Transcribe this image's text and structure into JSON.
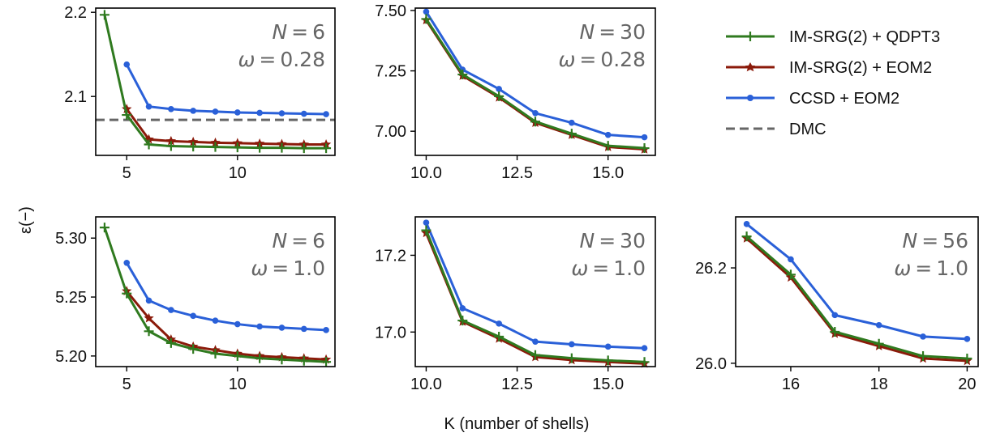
{
  "chart_data": {
    "type": "line",
    "ylabel": "ε(−)",
    "xlabel": "K (number of shells)",
    "legend": {
      "placement": "top-right",
      "entries": [
        {
          "label": "IM-SRG(2) + QDPT3",
          "color": "#2f7a1f",
          "marker": "plus"
        },
        {
          "label": "IM-SRG(2) + EOM2",
          "color": "#8b1a0a",
          "marker": "star"
        },
        {
          "label": "CCSD + EOM2",
          "color": "#2a60d8",
          "marker": "circle"
        },
        {
          "label": "DMC",
          "color": "#666666",
          "marker": "dashed"
        }
      ]
    },
    "panels": [
      {
        "N": "6",
        "omega": "0.28",
        "xlim": [
          3.6,
          14.4
        ],
        "ylim": [
          2.03,
          2.205
        ],
        "xticks": [
          5,
          10
        ],
        "xtick_labels": [
          "5",
          "10"
        ],
        "yticks": [
          2.1,
          2.2
        ],
        "ytick_labels": [
          "2.1",
          "2.2"
        ],
        "dmc": 2.0722,
        "series": [
          {
            "key": "ccsd",
            "x": [
              5,
              6,
              7,
              8,
              9,
              10,
              11,
              12,
              13,
              14
            ],
            "y": [
              2.138,
              2.088,
              2.085,
              2.083,
              2.082,
              2.081,
              2.0805,
              2.08,
              2.0795,
              2.079
            ]
          },
          {
            "key": "eom2",
            "x": [
              5,
              6,
              7,
              8,
              9,
              10,
              11,
              12,
              13,
              14
            ],
            "y": [
              2.085,
              2.049,
              2.047,
              2.046,
              2.045,
              2.0445,
              2.044,
              2.0435,
              2.043,
              2.043
            ]
          },
          {
            "key": "qdpt3",
            "x": [
              4,
              5,
              6,
              7,
              8,
              9,
              10,
              11,
              12,
              13,
              14
            ],
            "y": [
              2.197,
              2.078,
              2.043,
              2.041,
              2.0405,
              2.04,
              2.0395,
              2.039,
              2.039,
              2.0385,
              2.0385
            ]
          }
        ]
      },
      {
        "N": "30",
        "omega": "0.28",
        "xlim": [
          9.7,
          16.3
        ],
        "ylim": [
          6.9,
          7.51
        ],
        "xticks": [
          10,
          12.5,
          15
        ],
        "xtick_labels": [
          "10.0",
          "12.5",
          "15.0"
        ],
        "yticks": [
          7.0,
          7.25,
          7.5
        ],
        "ytick_labels": [
          "7.00",
          "7.25",
          "7.50"
        ],
        "series": [
          {
            "key": "ccsd",
            "x": [
              10,
              11,
              12,
              13,
              14,
              15,
              16
            ],
            "y": [
              7.495,
              7.255,
              7.175,
              7.075,
              7.035,
              6.985,
              6.975
            ]
          },
          {
            "key": "eom2",
            "x": [
              10,
              11,
              12,
              13,
              14,
              15,
              16
            ],
            "y": [
              7.46,
              7.23,
              7.14,
              7.035,
              6.985,
              6.935,
              6.925
            ]
          },
          {
            "key": "qdpt3",
            "x": [
              10,
              11,
              12,
              13,
              14,
              15,
              16
            ],
            "y": [
              7.465,
              7.235,
              7.145,
              7.04,
              6.99,
              6.94,
              6.93
            ]
          }
        ]
      },
      {
        "N": "6",
        "omega": "1.0",
        "xlim": [
          3.6,
          14.4
        ],
        "ylim": [
          5.191,
          5.318
        ],
        "xticks": [
          5,
          10
        ],
        "xtick_labels": [
          "5",
          "10"
        ],
        "yticks": [
          5.2,
          5.25,
          5.3
        ],
        "ytick_labels": [
          "5.20",
          "5.25",
          "5.30"
        ],
        "series": [
          {
            "key": "ccsd",
            "x": [
              5,
              6,
              7,
              8,
              9,
              10,
              11,
              12,
              13,
              14
            ],
            "y": [
              5.279,
              5.247,
              5.239,
              5.234,
              5.23,
              5.227,
              5.225,
              5.224,
              5.223,
              5.222
            ]
          },
          {
            "key": "eom2",
            "x": [
              5,
              6,
              7,
              8,
              9,
              10,
              11,
              12,
              13,
              14
            ],
            "y": [
              5.255,
              5.232,
              5.214,
              5.208,
              5.205,
              5.202,
              5.2,
              5.199,
              5.198,
              5.197
            ]
          },
          {
            "key": "qdpt3",
            "x": [
              4,
              5,
              6,
              7,
              8,
              9,
              10,
              11,
              12,
              13,
              14
            ],
            "y": [
              5.309,
              5.253,
              5.221,
              5.211,
              5.206,
              5.202,
              5.2,
              5.198,
              5.197,
              5.196,
              5.195
            ]
          }
        ]
      },
      {
        "N": "30",
        "omega": "1.0",
        "xlim": [
          9.7,
          16.3
        ],
        "ylim": [
          16.91,
          17.3
        ],
        "xticks": [
          10,
          12.5,
          15
        ],
        "xtick_labels": [
          "10.0",
          "12.5",
          "15.0"
        ],
        "yticks": [
          17.0,
          17.2
        ],
        "ytick_labels": [
          "17.0",
          "17.2"
        ],
        "series": [
          {
            "key": "ccsd",
            "x": [
              10,
              11,
              12,
              13,
              14,
              15,
              16
            ],
            "y": [
              17.285,
              17.062,
              17.022,
              16.975,
              16.968,
              16.962,
              16.958
            ]
          },
          {
            "key": "eom2",
            "x": [
              10,
              11,
              12,
              13,
              14,
              15,
              16
            ],
            "y": [
              17.258,
              17.027,
              16.983,
              16.935,
              16.927,
              16.922,
              16.918
            ]
          },
          {
            "key": "qdpt3",
            "x": [
              10,
              11,
              12,
              13,
              14,
              15,
              16
            ],
            "y": [
              17.265,
              17.03,
              16.988,
              16.94,
              16.932,
              16.926,
              16.922
            ]
          }
        ]
      },
      {
        "N": "56",
        "omega": "1.0",
        "xlim": [
          14.75,
          20.25
        ],
        "ylim": [
          25.993,
          26.307
        ],
        "xticks": [
          16,
          18,
          20
        ],
        "xtick_labels": [
          "16",
          "18",
          "20"
        ],
        "yticks": [
          26.0,
          26.2
        ],
        "ytick_labels": [
          "26.0",
          "26.2"
        ],
        "series": [
          {
            "key": "ccsd",
            "x": [
              15,
              16,
              17,
              18,
              19,
              20
            ],
            "y": [
              26.292,
              26.218,
              26.101,
              26.08,
              26.056,
              26.051
            ]
          },
          {
            "key": "eom2",
            "x": [
              15,
              16,
              17,
              18,
              19,
              20
            ],
            "y": [
              26.262,
              26.18,
              26.062,
              26.036,
              26.01,
              26.005
            ]
          },
          {
            "key": "qdpt3",
            "x": [
              15,
              16,
              17,
              18,
              19,
              20
            ],
            "y": [
              26.266,
              26.186,
              26.066,
              26.041,
              26.015,
              26.01
            ]
          }
        ]
      }
    ]
  }
}
